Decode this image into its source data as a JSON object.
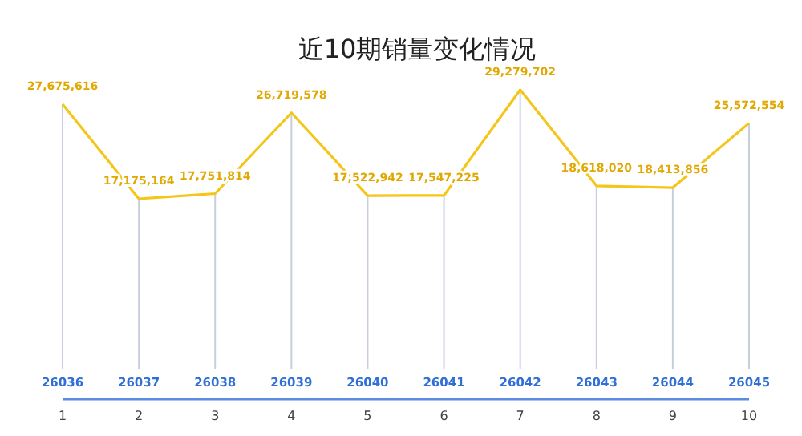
{
  "chart_data": {
    "type": "line",
    "title": "近10期销量变化情况",
    "x": [
      1,
      2,
      3,
      4,
      5,
      6,
      7,
      8,
      9,
      10
    ],
    "xlim": [
      1,
      10
    ],
    "xticks": [
      1,
      2,
      3,
      4,
      5,
      6,
      7,
      8,
      9,
      10
    ],
    "series": [
      {
        "color": "#f5c518",
        "values": [
          27675616,
          17175164,
          17751814,
          26719578,
          17522942,
          17547225,
          29279702,
          18618020,
          18413856,
          25572554
        ],
        "value_labels": [
          "27,675,616",
          "17,175,164",
          "17,751,814",
          "26,719,578",
          "17,522,942",
          "17,547,225",
          "29,279,702",
          "18,618,020",
          "18,413,856",
          "25,572,554"
        ]
      }
    ],
    "marker": "none",
    "line_style": "solid",
    "grid": "x",
    "annotations": [
      "26036",
      "26037",
      "26038",
      "26039",
      "26040",
      "26041",
      "26042",
      "26043",
      "26044",
      "26045"
    ]
  }
}
